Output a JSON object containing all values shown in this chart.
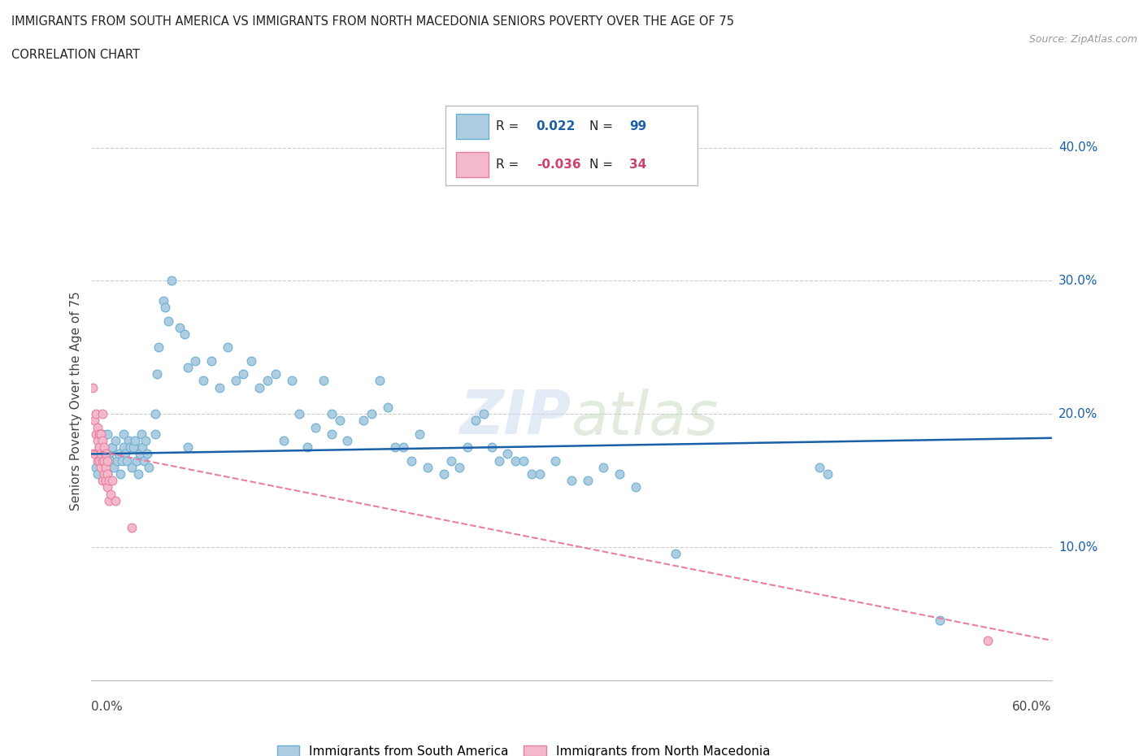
{
  "title_line1": "IMMIGRANTS FROM SOUTH AMERICA VS IMMIGRANTS FROM NORTH MACEDONIA SENIORS POVERTY OVER THE AGE OF 75",
  "title_line2": "CORRELATION CHART",
  "source_text": "Source: ZipAtlas.com",
  "ylabel": "Seniors Poverty Over the Age of 75",
  "legend_label1": "Immigrants from South America",
  "legend_label2": "Immigrants from North Macedonia",
  "blue_color": "#aecde1",
  "blue_edge_color": "#6aafd4",
  "pink_color": "#f4b8cb",
  "pink_edge_color": "#e87fa0",
  "blue_line_color": "#1a5fa8",
  "pink_line_color": "#e87fa0",
  "ytick_color": "#1a5fa8",
  "blue_trend": [
    0,
    17.0,
    60,
    18.2
  ],
  "pink_trend": [
    0,
    17.3,
    60,
    3.0
  ],
  "blue_scatter": [
    [
      0.3,
      16.0
    ],
    [
      0.4,
      15.5
    ],
    [
      0.5,
      17.5
    ],
    [
      0.6,
      16.5
    ],
    [
      0.7,
      18.5
    ],
    [
      0.8,
      17.0
    ],
    [
      0.9,
      16.0
    ],
    [
      1.0,
      15.5
    ],
    [
      1.0,
      18.5
    ],
    [
      1.1,
      17.0
    ],
    [
      1.2,
      16.5
    ],
    [
      1.3,
      17.5
    ],
    [
      1.4,
      16.0
    ],
    [
      1.5,
      18.0
    ],
    [
      1.6,
      16.5
    ],
    [
      1.7,
      17.0
    ],
    [
      1.8,
      15.5
    ],
    [
      1.9,
      16.5
    ],
    [
      2.0,
      17.5
    ],
    [
      2.0,
      18.5
    ],
    [
      2.1,
      17.0
    ],
    [
      2.2,
      16.5
    ],
    [
      2.3,
      18.0
    ],
    [
      2.4,
      17.5
    ],
    [
      2.5,
      16.0
    ],
    [
      2.6,
      17.5
    ],
    [
      2.7,
      18.0
    ],
    [
      2.8,
      16.5
    ],
    [
      2.9,
      15.5
    ],
    [
      3.0,
      17.0
    ],
    [
      3.1,
      18.5
    ],
    [
      3.2,
      17.5
    ],
    [
      3.3,
      16.5
    ],
    [
      3.4,
      18.0
    ],
    [
      3.5,
      17.0
    ],
    [
      3.6,
      16.0
    ],
    [
      4.0,
      20.0
    ],
    [
      4.0,
      18.5
    ],
    [
      4.1,
      23.0
    ],
    [
      4.2,
      25.0
    ],
    [
      4.5,
      28.5
    ],
    [
      4.6,
      28.0
    ],
    [
      4.8,
      27.0
    ],
    [
      5.0,
      30.0
    ],
    [
      5.5,
      26.5
    ],
    [
      5.8,
      26.0
    ],
    [
      6.0,
      17.5
    ],
    [
      6.0,
      23.5
    ],
    [
      6.5,
      24.0
    ],
    [
      7.0,
      22.5
    ],
    [
      7.5,
      24.0
    ],
    [
      8.0,
      22.0
    ],
    [
      8.5,
      25.0
    ],
    [
      9.0,
      22.5
    ],
    [
      9.5,
      23.0
    ],
    [
      10.0,
      24.0
    ],
    [
      10.5,
      22.0
    ],
    [
      11.0,
      22.5
    ],
    [
      11.5,
      23.0
    ],
    [
      12.0,
      18.0
    ],
    [
      12.5,
      22.5
    ],
    [
      13.0,
      20.0
    ],
    [
      13.5,
      17.5
    ],
    [
      14.0,
      19.0
    ],
    [
      14.5,
      22.5
    ],
    [
      15.0,
      18.5
    ],
    [
      15.0,
      20.0
    ],
    [
      15.5,
      19.5
    ],
    [
      16.0,
      18.0
    ],
    [
      17.0,
      19.5
    ],
    [
      17.5,
      20.0
    ],
    [
      18.0,
      22.5
    ],
    [
      18.5,
      20.5
    ],
    [
      19.0,
      17.5
    ],
    [
      19.5,
      17.5
    ],
    [
      20.0,
      16.5
    ],
    [
      20.5,
      18.5
    ],
    [
      21.0,
      16.0
    ],
    [
      22.0,
      15.5
    ],
    [
      22.5,
      16.5
    ],
    [
      23.0,
      16.0
    ],
    [
      23.5,
      17.5
    ],
    [
      24.0,
      19.5
    ],
    [
      24.5,
      20.0
    ],
    [
      25.0,
      17.5
    ],
    [
      25.5,
      16.5
    ],
    [
      26.0,
      17.0
    ],
    [
      26.5,
      16.5
    ],
    [
      27.0,
      16.5
    ],
    [
      27.5,
      15.5
    ],
    [
      28.0,
      15.5
    ],
    [
      29.0,
      16.5
    ],
    [
      30.0,
      15.0
    ],
    [
      31.0,
      15.0
    ],
    [
      32.0,
      16.0
    ],
    [
      33.0,
      15.5
    ],
    [
      34.0,
      14.5
    ],
    [
      36.5,
      9.5
    ],
    [
      45.5,
      16.0
    ],
    [
      46.0,
      15.5
    ],
    [
      53.0,
      4.5
    ]
  ],
  "pink_scatter": [
    [
      0.1,
      22.0
    ],
    [
      0.2,
      17.0
    ],
    [
      0.2,
      19.5
    ],
    [
      0.3,
      18.5
    ],
    [
      0.3,
      20.0
    ],
    [
      0.4,
      16.5
    ],
    [
      0.4,
      18.0
    ],
    [
      0.4,
      19.0
    ],
    [
      0.5,
      16.5
    ],
    [
      0.5,
      17.5
    ],
    [
      0.5,
      18.5
    ],
    [
      0.6,
      16.0
    ],
    [
      0.6,
      17.0
    ],
    [
      0.6,
      18.5
    ],
    [
      0.7,
      15.0
    ],
    [
      0.7,
      16.5
    ],
    [
      0.7,
      18.0
    ],
    [
      0.7,
      20.0
    ],
    [
      0.8,
      15.5
    ],
    [
      0.8,
      16.5
    ],
    [
      0.8,
      17.5
    ],
    [
      0.9,
      15.0
    ],
    [
      0.9,
      16.0
    ],
    [
      0.9,
      17.0
    ],
    [
      1.0,
      14.5
    ],
    [
      1.0,
      15.5
    ],
    [
      1.0,
      16.5
    ],
    [
      1.1,
      13.5
    ],
    [
      1.1,
      15.0
    ],
    [
      1.2,
      14.0
    ],
    [
      1.3,
      15.0
    ],
    [
      1.5,
      13.5
    ],
    [
      2.5,
      11.5
    ],
    [
      56.0,
      3.0
    ]
  ],
  "xlim": [
    0,
    60
  ],
  "ylim": [
    0,
    42
  ],
  "figsize": [
    14.06,
    9.3
  ],
  "dpi": 100
}
